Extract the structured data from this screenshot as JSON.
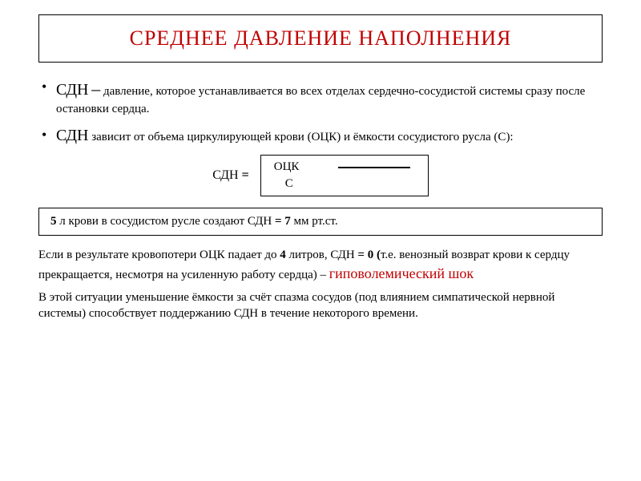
{
  "title": "СРЕДНЕЕ ДАВЛЕНИЕ НАПОЛНЕНИЯ",
  "bullet1": {
    "term": "СДН",
    "dash": "–",
    "text": " давление, которое устанавливается во всех отделах сердечно-сосудистой системы сразу после остановки сердца."
  },
  "bullet2": {
    "term": "СДН",
    "text1": " зависит от объема циркулирующей крови (",
    "abbr": "ОЦК",
    "text2": ") и ёмкости сосудистого русла (",
    "abbr2": "С",
    "text3": "):"
  },
  "formula": {
    "label": "СДН ",
    "eq": "=",
    "top": "ОЦК",
    "bot": "С"
  },
  "fact": {
    "t1": "5",
    "t2": " л крови в сосудистом русле создают СДН ",
    "t3": "= 7",
    "t4": " мм рт.ст."
  },
  "para1": {
    "t1": "Если в результате кровопотери ОЦК падает до ",
    "t2": "4",
    "t3": " литров,  СДН ",
    "t4": "= 0  (",
    "t5": "т.е. венозный возврат крови к сердцу прекращается, несмотря на усиленную работу сердца) – ",
    "hl": "гиповолемический шок"
  },
  "para2": "В этой ситуации уменьшение ёмкости  за счёт спазма сосудов (под влиянием симпатической нервной системы) способствует поддержанию СДН в течение некоторого времени.",
  "colors": {
    "accent": "#c00000",
    "text": "#000000",
    "bg": "#ffffff"
  }
}
